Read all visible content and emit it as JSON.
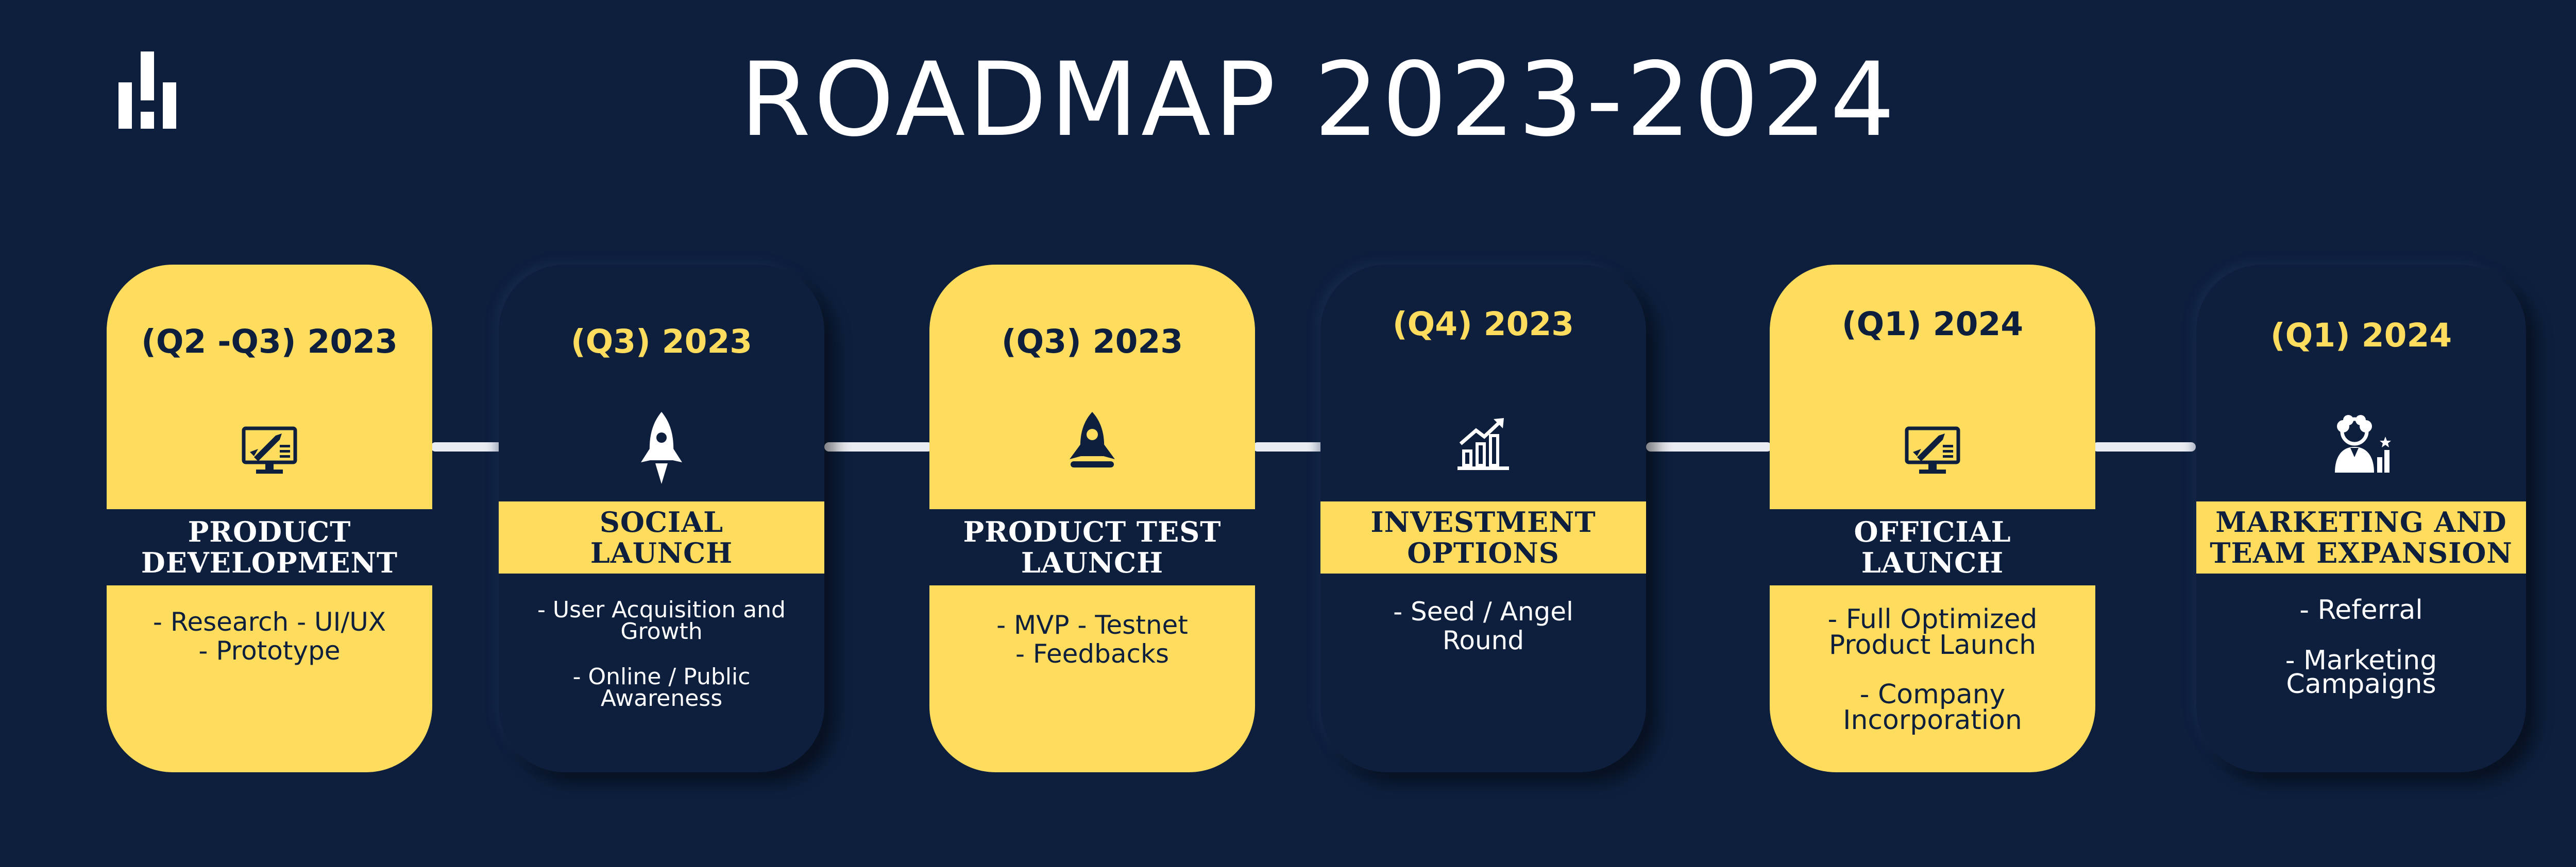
{
  "title": "ROADMAP 2023-2024",
  "colors": {
    "background": "#0d1f3d",
    "accent": "#fedd5e",
    "text_light": "#ffffff"
  },
  "icons": [
    "monitor-rocket-icon",
    "rocket-icon",
    "rocket-icon",
    "growth-chart-icon",
    "monitor-rocket-icon",
    "team-people-icon"
  ],
  "milestones": [
    {
      "period": "(Q2 -Q3) 2023",
      "title_lines": [
        "PRODUCT",
        "DEVELOPMENT"
      ],
      "details": [
        "- Research - UI/UX\n- Prototype"
      ]
    },
    {
      "period": "(Q3) 2023",
      "title_lines": [
        "SOCIAL",
        "LAUNCH"
      ],
      "details": [
        "- User Acquisition and\nGrowth",
        "- Online /  Public\nAwareness"
      ]
    },
    {
      "period": "(Q3) 2023",
      "title_lines": [
        "PRODUCT TEST",
        "LAUNCH"
      ],
      "details": [
        "- MVP    - Testnet\n- Feedbacks"
      ]
    },
    {
      "period": "(Q4) 2023",
      "title_lines": [
        "INVESTMENT",
        "OPTIONS"
      ],
      "details": [
        "- Seed / Angel\nRound"
      ]
    },
    {
      "period": "(Q1) 2024",
      "title_lines": [
        "OFFICIAL",
        "LAUNCH"
      ],
      "details": [
        "- Full Optimized\nProduct Launch",
        "- Company\nIncorporation"
      ]
    },
    {
      "period": "(Q1) 2024",
      "title_lines": [
        "MARKETING AND",
        "TEAM EXPANSION"
      ],
      "details": [
        "- Referral",
        "- Marketing\nCampaigns"
      ]
    }
  ]
}
